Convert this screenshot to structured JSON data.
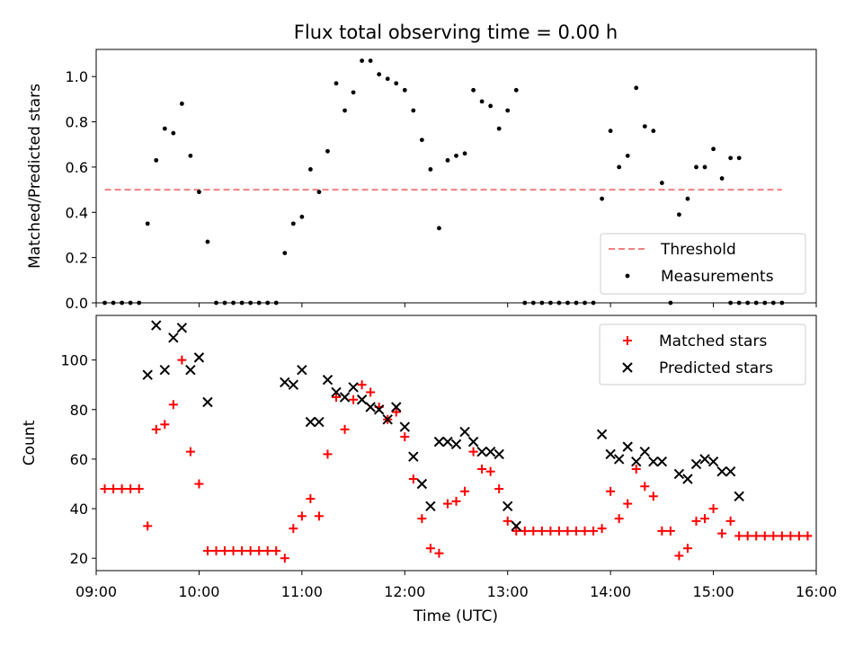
{
  "chart_data": [
    {
      "type": "scatter",
      "title": "Flux total observing time = 0.00 h",
      "xlabel": "",
      "ylabel": "Matched/Predicted stars",
      "xlim": [
        "09:00",
        "16:00"
      ],
      "ylim": [
        0,
        1.12
      ],
      "yticks": [
        "0.0",
        "0.2",
        "0.4",
        "0.6",
        "0.8",
        "1.0"
      ],
      "legend_position": "lower-right",
      "threshold": {
        "name": "Threshold",
        "color": "#f08080",
        "y": 0.5,
        "x_start": "09:05",
        "x_end": "15:40"
      },
      "series": [
        {
          "name": "Measurements",
          "color": "#000000",
          "marker": "dot",
          "points": [
            [
              "09:05",
              0
            ],
            [
              "09:10",
              0
            ],
            [
              "09:15",
              0
            ],
            [
              "09:20",
              0
            ],
            [
              "09:25",
              0
            ],
            [
              "09:30",
              0.35
            ],
            [
              "09:35",
              0.63
            ],
            [
              "09:40",
              0.77
            ],
            [
              "09:45",
              0.75
            ],
            [
              "09:50",
              0.88
            ],
            [
              "09:55",
              0.65
            ],
            [
              "10:00",
              0.49
            ],
            [
              "10:05",
              0.27
            ],
            [
              "10:10",
              0
            ],
            [
              "10:15",
              0
            ],
            [
              "10:20",
              0
            ],
            [
              "10:25",
              0
            ],
            [
              "10:30",
              0
            ],
            [
              "10:35",
              0
            ],
            [
              "10:40",
              0
            ],
            [
              "10:45",
              0
            ],
            [
              "10:50",
              0.22
            ],
            [
              "10:55",
              0.35
            ],
            [
              "11:00",
              0.38
            ],
            [
              "11:05",
              0.59
            ],
            [
              "11:10",
              0.49
            ],
            [
              "11:15",
              0.67
            ],
            [
              "11:20",
              0.97
            ],
            [
              "11:25",
              0.85
            ],
            [
              "11:30",
              0.93
            ],
            [
              "11:35",
              1.07
            ],
            [
              "11:40",
              1.07
            ],
            [
              "11:45",
              1.01
            ],
            [
              "11:50",
              0.99
            ],
            [
              "11:55",
              0.97
            ],
            [
              "12:00",
              0.94
            ],
            [
              "12:05",
              0.85
            ],
            [
              "12:10",
              0.72
            ],
            [
              "12:15",
              0.59
            ],
            [
              "12:20",
              0.33
            ],
            [
              "12:25",
              0.63
            ],
            [
              "12:30",
              0.65
            ],
            [
              "12:35",
              0.66
            ],
            [
              "12:40",
              0.94
            ],
            [
              "12:45",
              0.89
            ],
            [
              "12:50",
              0.87
            ],
            [
              "12:55",
              0.77
            ],
            [
              "13:00",
              0.85
            ],
            [
              "13:05",
              0.94
            ],
            [
              "13:10",
              0
            ],
            [
              "13:15",
              0
            ],
            [
              "13:20",
              0
            ],
            [
              "13:25",
              0
            ],
            [
              "13:30",
              0
            ],
            [
              "13:35",
              0
            ],
            [
              "13:40",
              0
            ],
            [
              "13:45",
              0
            ],
            [
              "13:50",
              0
            ],
            [
              "13:55",
              0.46
            ],
            [
              "14:00",
              0.76
            ],
            [
              "14:05",
              0.6
            ],
            [
              "14:10",
              0.65
            ],
            [
              "14:15",
              0.95
            ],
            [
              "14:20",
              0.78
            ],
            [
              "14:25",
              0.76
            ],
            [
              "14:30",
              0.53
            ],
            [
              "14:35",
              0
            ],
            [
              "14:40",
              0.39
            ],
            [
              "14:45",
              0.46
            ],
            [
              "14:50",
              0.6
            ],
            [
              "14:55",
              0.6
            ],
            [
              "15:00",
              0.68
            ],
            [
              "15:05",
              0.55
            ],
            [
              "15:10",
              0.64
            ],
            [
              "15:15",
              0.64
            ],
            [
              "15:10",
              0
            ],
            [
              "15:15",
              0
            ],
            [
              "15:20",
              0
            ],
            [
              "15:25",
              0
            ],
            [
              "15:30",
              0
            ],
            [
              "15:35",
              0
            ],
            [
              "15:40",
              0
            ]
          ]
        }
      ]
    },
    {
      "type": "scatter",
      "title": "",
      "xlabel": "Time (UTC)",
      "ylabel": "Count",
      "xlim": [
        "09:00",
        "16:00"
      ],
      "ylim": [
        15,
        118
      ],
      "xticks": [
        "09:00",
        "10:00",
        "11:00",
        "12:00",
        "13:00",
        "14:00",
        "15:00",
        "16:00"
      ],
      "yticks": [
        "20",
        "40",
        "60",
        "80",
        "100"
      ],
      "legend_position": "upper-right",
      "series": [
        {
          "name": "Matched stars",
          "color": "#ff0000",
          "marker": "plus",
          "points": [
            [
              "09:05",
              48
            ],
            [
              "09:10",
              48
            ],
            [
              "09:15",
              48
            ],
            [
              "09:20",
              48
            ],
            [
              "09:25",
              48
            ],
            [
              "09:30",
              33
            ],
            [
              "09:35",
              72
            ],
            [
              "09:40",
              74
            ],
            [
              "09:45",
              82
            ],
            [
              "09:50",
              100
            ],
            [
              "09:55",
              63
            ],
            [
              "10:00",
              50
            ],
            [
              "10:05",
              23
            ],
            [
              "10:10",
              23
            ],
            [
              "10:15",
              23
            ],
            [
              "10:20",
              23
            ],
            [
              "10:25",
              23
            ],
            [
              "10:30",
              23
            ],
            [
              "10:35",
              23
            ],
            [
              "10:40",
              23
            ],
            [
              "10:45",
              23
            ],
            [
              "10:50",
              20
            ],
            [
              "10:55",
              32
            ],
            [
              "11:00",
              37
            ],
            [
              "11:05",
              44
            ],
            [
              "11:10",
              37
            ],
            [
              "11:15",
              62
            ],
            [
              "11:20",
              85
            ],
            [
              "11:25",
              72
            ],
            [
              "11:30",
              84
            ],
            [
              "11:35",
              90
            ],
            [
              "11:40",
              87
            ],
            [
              "11:45",
              81
            ],
            [
              "11:50",
              76
            ],
            [
              "11:55",
              79
            ],
            [
              "12:00",
              69
            ],
            [
              "12:05",
              52
            ],
            [
              "12:10",
              36
            ],
            [
              "12:15",
              24
            ],
            [
              "12:20",
              22
            ],
            [
              "12:25",
              42
            ],
            [
              "12:30",
              43
            ],
            [
              "12:35",
              47
            ],
            [
              "12:40",
              63
            ],
            [
              "12:45",
              56
            ],
            [
              "12:50",
              55
            ],
            [
              "12:55",
              48
            ],
            [
              "13:00",
              35
            ],
            [
              "13:05",
              31
            ],
            [
              "13:10",
              31
            ],
            [
              "13:15",
              31
            ],
            [
              "13:20",
              31
            ],
            [
              "13:25",
              31
            ],
            [
              "13:30",
              31
            ],
            [
              "13:35",
              31
            ],
            [
              "13:40",
              31
            ],
            [
              "13:45",
              31
            ],
            [
              "13:50",
              31
            ],
            [
              "13:55",
              32
            ],
            [
              "14:00",
              47
            ],
            [
              "14:05",
              36
            ],
            [
              "14:10",
              42
            ],
            [
              "14:15",
              56
            ],
            [
              "14:20",
              49
            ],
            [
              "14:25",
              45
            ],
            [
              "14:30",
              31
            ],
            [
              "14:35",
              31
            ],
            [
              "14:40",
              21
            ],
            [
              "14:45",
              24
            ],
            [
              "14:50",
              35
            ],
            [
              "14:55",
              36
            ],
            [
              "15:00",
              40
            ],
            [
              "15:05",
              30
            ],
            [
              "15:10",
              35
            ],
            [
              "15:15",
              29
            ],
            [
              "15:20",
              29
            ],
            [
              "15:25",
              29
            ],
            [
              "15:30",
              29
            ],
            [
              "15:35",
              29
            ],
            [
              "15:40",
              29
            ],
            [
              "15:45",
              29
            ],
            [
              "15:50",
              29
            ],
            [
              "15:55",
              29
            ]
          ]
        },
        {
          "name": "Predicted stars",
          "color": "#000000",
          "marker": "x",
          "points": [
            [
              "09:30",
              94
            ],
            [
              "09:35",
              114
            ],
            [
              "09:40",
              96
            ],
            [
              "09:45",
              109
            ],
            [
              "09:50",
              113
            ],
            [
              "09:55",
              96
            ],
            [
              "10:00",
              101
            ],
            [
              "10:05",
              83
            ],
            [
              "10:50",
              91
            ],
            [
              "10:55",
              90
            ],
            [
              "11:00",
              96
            ],
            [
              "11:05",
              75
            ],
            [
              "11:10",
              75
            ],
            [
              "11:15",
              92
            ],
            [
              "11:20",
              87
            ],
            [
              "11:25",
              85
            ],
            [
              "11:30",
              89
            ],
            [
              "11:35",
              84
            ],
            [
              "11:40",
              81
            ],
            [
              "11:45",
              80
            ],
            [
              "11:50",
              76
            ],
            [
              "11:55",
              81
            ],
            [
              "12:00",
              73
            ],
            [
              "12:05",
              61
            ],
            [
              "12:10",
              50
            ],
            [
              "12:15",
              41
            ],
            [
              "12:20",
              67
            ],
            [
              "12:25",
              67
            ],
            [
              "12:30",
              66
            ],
            [
              "12:35",
              71
            ],
            [
              "12:40",
              67
            ],
            [
              "12:45",
              63
            ],
            [
              "12:50",
              63
            ],
            [
              "12:55",
              62
            ],
            [
              "13:00",
              41
            ],
            [
              "13:05",
              33
            ],
            [
              "13:55",
              70
            ],
            [
              "14:00",
              62
            ],
            [
              "14:05",
              60
            ],
            [
              "14:10",
              65
            ],
            [
              "14:15",
              59
            ],
            [
              "14:20",
              63
            ],
            [
              "14:25",
              59
            ],
            [
              "14:30",
              59
            ],
            [
              "14:40",
              54
            ],
            [
              "14:45",
              52
            ],
            [
              "14:50",
              58
            ],
            [
              "14:55",
              60
            ],
            [
              "15:00",
              59
            ],
            [
              "15:05",
              55
            ],
            [
              "15:10",
              55
            ],
            [
              "15:15",
              45
            ]
          ]
        }
      ]
    }
  ]
}
